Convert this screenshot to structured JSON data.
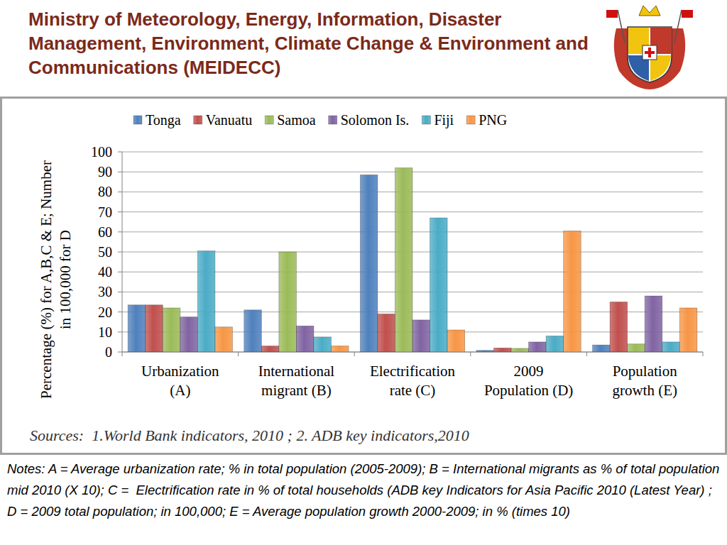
{
  "chart_data": {
    "type": "bar",
    "title": "Ministry of Meteorology, Energy, Information, Disaster Management, Environment, Climate Change & Environment and Communications (MEIDECC)",
    "y_label": "Percentage (%) for A,B,C & E; Number in 100,000 for D",
    "source": "Sources:  1.World Bank indicators, 2010 ; 2. ADB key indicators,2010",
    "notes": "Notes: A = Average urbanization rate; % in total population (2005-2009); B = International migrants as % of total population mid 2010 (X 10); C =  Electrification rate in % of total households (ADB key Indicators for Asia Pacific 2010 (Latest Year) ; D = 2009 total population; in 100,000; E = Average population growth 2000-2009; in % (times 10)",
    "categories": [
      "Urbanization (A)",
      "International migrant (B)",
      "Electrification rate (C)",
      "2009 Population (D)",
      "Population growth (E)"
    ],
    "series": [
      {
        "name": "Tonga",
        "color": "#4f81bd",
        "values": [
          23.5,
          21,
          88.5,
          0.8,
          3.5
        ]
      },
      {
        "name": "Vanuatu",
        "color": "#c0504d",
        "values": [
          23.5,
          3,
          19,
          2,
          25
        ]
      },
      {
        "name": "Samoa",
        "color": "#9bbb59",
        "values": [
          22,
          50,
          92,
          1.8,
          4
        ]
      },
      {
        "name": "Solomon Is.",
        "color": "#8064a2",
        "values": [
          17.5,
          13,
          16,
          5,
          28
        ]
      },
      {
        "name": "Fiji",
        "color": "#4bacc6",
        "values": [
          50.5,
          7.5,
          67,
          8,
          5
        ]
      },
      {
        "name": "PNG",
        "color": "#f79646",
        "values": [
          12.5,
          3,
          11,
          60.5,
          22
        ]
      }
    ],
    "ylim": [
      0,
      100
    ],
    "yticks": [
      0,
      10,
      20,
      30,
      40,
      50,
      60,
      70,
      80,
      90,
      100
    ],
    "grid": true,
    "legend": "top"
  }
}
